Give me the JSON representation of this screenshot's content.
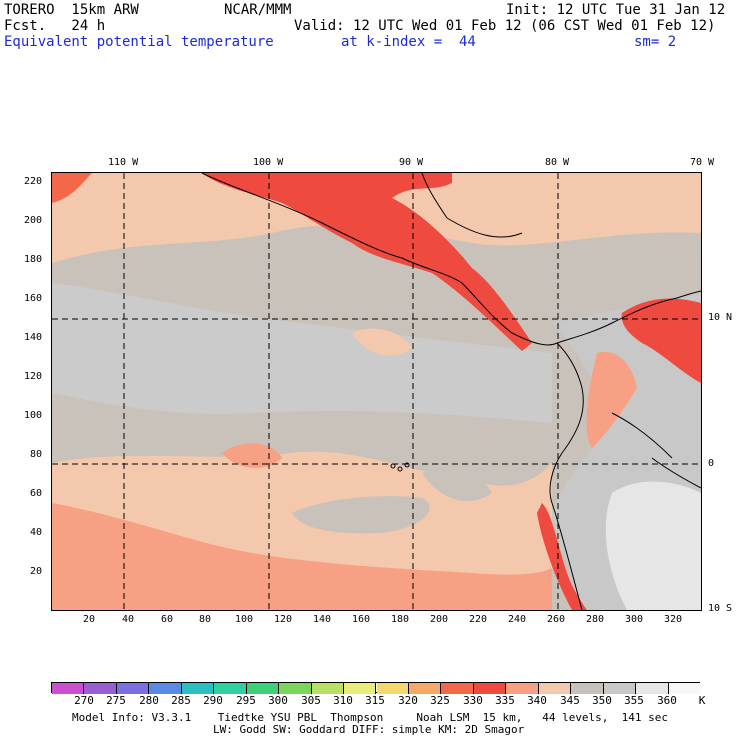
{
  "header": {
    "line1_left": "TORERO  15km ARW",
    "line1_center": "NCAR/MMM",
    "line1_right": "Init: 12 UTC Tue 31 Jan 12",
    "line2_left": "Fcst.   24 h",
    "line2_right": "Valid: 12 UTC Wed 01 Feb 12 (06 CST Wed 01 Feb 12)",
    "line3_left": "Equivalent potential temperature",
    "line3_center": "at k-index =  44",
    "line3_right": "sm= 2"
  },
  "map": {
    "top_lon_labels": [
      "110 W",
      "100 W",
      "90 W",
      "80 W",
      "70 W"
    ],
    "right_lat_labels": [
      "10 N",
      "0",
      "10 S"
    ],
    "left_y_labels": [
      "220",
      "200",
      "180",
      "160",
      "140",
      "120",
      "100",
      "80",
      "60",
      "40",
      "20"
    ],
    "bottom_x_labels": [
      "20",
      "40",
      "60",
      "80",
      "100",
      "120",
      "140",
      "160",
      "180",
      "200",
      "220",
      "240",
      "260",
      "280",
      "300",
      "320"
    ]
  },
  "colorbar": {
    "labels": [
      "270",
      "275",
      "280",
      "285",
      "290",
      "295",
      "300",
      "305",
      "310",
      "315",
      "320",
      "325",
      "330",
      "335",
      "340",
      "345",
      "350",
      "355",
      "360"
    ],
    "unit": "K",
    "colors": [
      "#cc4fd1",
      "#9a5ed4",
      "#7a70e2",
      "#5a8ae6",
      "#2cbfbf",
      "#2fd1a0",
      "#3cd178",
      "#7ad65a",
      "#b8e066",
      "#e8ec7c",
      "#f5d86a",
      "#f7a866",
      "#f26848",
      "#ef4a40",
      "#f7a084",
      "#f4c8ac",
      "#c8c1bb",
      "#c8c8c8",
      "#e6e6e6",
      "#f7f7f7"
    ]
  },
  "footer": {
    "line1": "Model Info: V3.3.1    Tiedtke YSU PBL  Thompson     Noah LSM  15 km,   44 levels,  141 sec",
    "line2": "LW: Godd SW: Goddard DIFF: simple KM: 2D Smagor"
  }
}
